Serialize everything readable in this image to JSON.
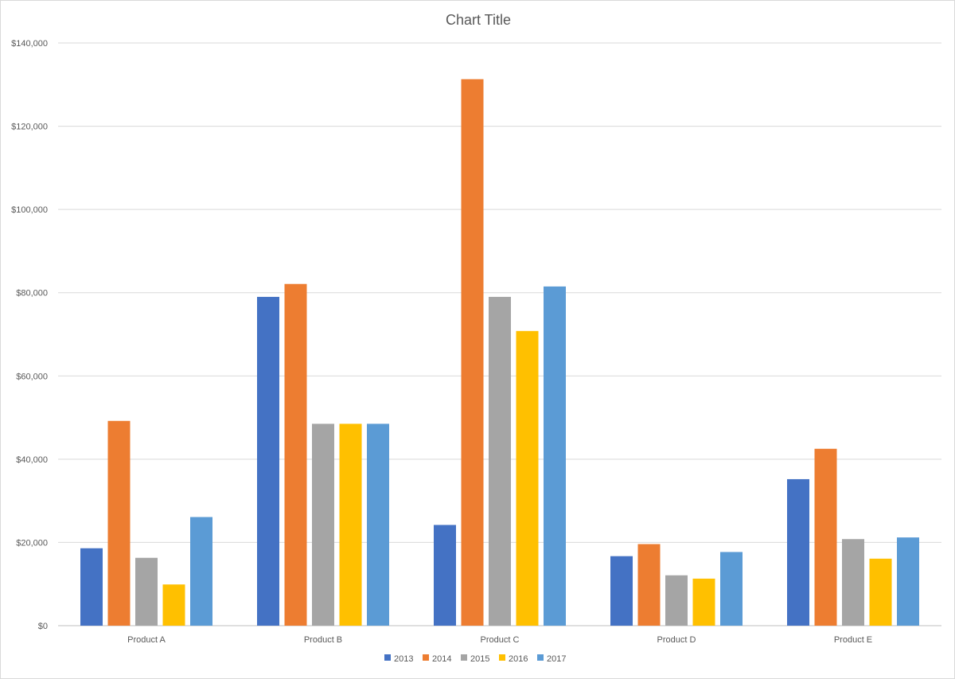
{
  "chart_data": {
    "type": "bar",
    "title": "Chart Title",
    "xlabel": "",
    "ylabel": "",
    "categories": [
      "Product A",
      "Product B",
      "Product C",
      "Product D",
      "Product E"
    ],
    "series": [
      {
        "name": "2013",
        "color": "#4472C4",
        "values": [
          18600,
          79000,
          24200,
          16700,
          35200
        ]
      },
      {
        "name": "2014",
        "color": "#ED7D31",
        "values": [
          49200,
          82100,
          131300,
          19600,
          42500
        ]
      },
      {
        "name": "2015",
        "color": "#A5A5A5",
        "values": [
          16300,
          48500,
          79000,
          12100,
          20800
        ]
      },
      {
        "name": "2016",
        "color": "#FFC000",
        "values": [
          9900,
          48500,
          70800,
          11300,
          16100
        ]
      },
      {
        "name": "2017",
        "color": "#5B9BD5",
        "values": [
          26100,
          48500,
          81500,
          17700,
          21200
        ]
      }
    ],
    "ylim": [
      0,
      140000
    ],
    "yticks": [
      0,
      20000,
      40000,
      60000,
      80000,
      100000,
      120000,
      140000
    ],
    "ytick_labels": [
      "$0",
      "$20,000",
      "$40,000",
      "$60,000",
      "$80,000",
      "$100,000",
      "$120,000",
      "$140,000"
    ],
    "grid": true,
    "legend_position": "bottom"
  }
}
